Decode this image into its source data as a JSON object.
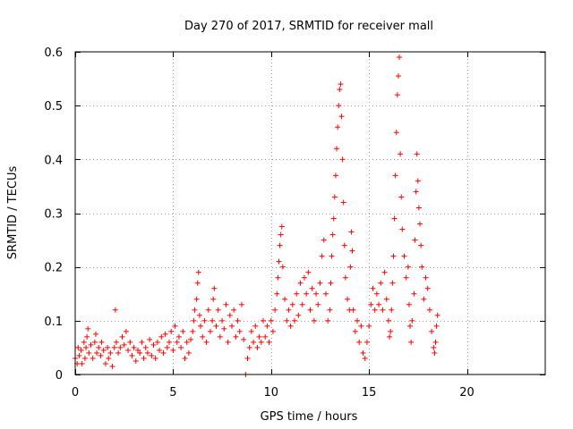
{
  "chart_data": {
    "type": "scatter",
    "title": "Day 270 of 2017, SRMTID for receiver mall",
    "xlabel": "GPS time / hours",
    "ylabel": "SRMTID / TECUs",
    "xlim": [
      0,
      24
    ],
    "ylim": [
      0,
      0.6
    ],
    "x_ticks": [
      0,
      5,
      10,
      15,
      20
    ],
    "x_tick_labels": [
      "0",
      "5",
      "10",
      "15",
      "20"
    ],
    "y_ticks": [
      0,
      0.1,
      0.2,
      0.3,
      0.4,
      0.5,
      0.6
    ],
    "y_tick_labels": [
      "0",
      "0.1",
      "0.2",
      "0.3",
      "0.4",
      "0.5",
      "0.6"
    ],
    "grid": true,
    "marker": "+",
    "marker_color": "#ff0000",
    "series": [
      {
        "name": "SRMTID",
        "points": [
          [
            0.0,
            0.03
          ],
          [
            0.1,
            0.02
          ],
          [
            0.15,
            0.05
          ],
          [
            0.2,
            0.035
          ],
          [
            0.3,
            0.045
          ],
          [
            0.35,
            0.02
          ],
          [
            0.45,
            0.06
          ],
          [
            0.5,
            0.03
          ],
          [
            0.55,
            0.05
          ],
          [
            0.6,
            0.07
          ],
          [
            0.65,
            0.085
          ],
          [
            0.7,
            0.04
          ],
          [
            0.8,
            0.055
          ],
          [
            0.9,
            0.03
          ],
          [
            1.0,
            0.06
          ],
          [
            1.05,
            0.075
          ],
          [
            1.1,
            0.04
          ],
          [
            1.2,
            0.05
          ],
          [
            1.3,
            0.035
          ],
          [
            1.35,
            0.06
          ],
          [
            1.45,
            0.045
          ],
          [
            1.55,
            0.02
          ],
          [
            1.65,
            0.05
          ],
          [
            1.7,
            0.03
          ],
          [
            1.8,
            0.04
          ],
          [
            1.9,
            0.015
          ],
          [
            2.0,
            0.05
          ],
          [
            2.05,
            0.12
          ],
          [
            2.1,
            0.06
          ],
          [
            2.2,
            0.04
          ],
          [
            2.3,
            0.05
          ],
          [
            2.4,
            0.07
          ],
          [
            2.5,
            0.055
          ],
          [
            2.6,
            0.08
          ],
          [
            2.7,
            0.045
          ],
          [
            2.8,
            0.06
          ],
          [
            2.9,
            0.035
          ],
          [
            3.0,
            0.05
          ],
          [
            3.1,
            0.025
          ],
          [
            3.2,
            0.045
          ],
          [
            3.3,
            0.04
          ],
          [
            3.4,
            0.06
          ],
          [
            3.5,
            0.03
          ],
          [
            3.6,
            0.05
          ],
          [
            3.7,
            0.04
          ],
          [
            3.8,
            0.065
          ],
          [
            3.9,
            0.035
          ],
          [
            4.0,
            0.055
          ],
          [
            4.1,
            0.03
          ],
          [
            4.2,
            0.06
          ],
          [
            4.3,
            0.045
          ],
          [
            4.4,
            0.07
          ],
          [
            4.5,
            0.04
          ],
          [
            4.6,
            0.075
          ],
          [
            4.7,
            0.05
          ],
          [
            4.8,
            0.06
          ],
          [
            4.9,
            0.08
          ],
          [
            5.0,
            0.045
          ],
          [
            5.1,
            0.09
          ],
          [
            5.2,
            0.06
          ],
          [
            5.3,
            0.07
          ],
          [
            5.4,
            0.05
          ],
          [
            5.5,
            0.08
          ],
          [
            5.6,
            0.03
          ],
          [
            5.7,
            0.06
          ],
          [
            5.8,
            0.04
          ],
          [
            5.9,
            0.065
          ],
          [
            6.0,
            0.08
          ],
          [
            6.05,
            0.1
          ],
          [
            6.1,
            0.12
          ],
          [
            6.2,
            0.14
          ],
          [
            6.25,
            0.17
          ],
          [
            6.3,
            0.19
          ],
          [
            6.35,
            0.11
          ],
          [
            6.4,
            0.09
          ],
          [
            6.5,
            0.07
          ],
          [
            6.6,
            0.1
          ],
          [
            6.7,
            0.06
          ],
          [
            6.8,
            0.12
          ],
          [
            6.9,
            0.08
          ],
          [
            7.0,
            0.1
          ],
          [
            7.05,
            0.14
          ],
          [
            7.1,
            0.16
          ],
          [
            7.2,
            0.09
          ],
          [
            7.3,
            0.12
          ],
          [
            7.4,
            0.07
          ],
          [
            7.5,
            0.1
          ],
          [
            7.6,
            0.085
          ],
          [
            7.7,
            0.13
          ],
          [
            7.8,
            0.06
          ],
          [
            7.9,
            0.11
          ],
          [
            8.0,
            0.09
          ],
          [
            8.1,
            0.12
          ],
          [
            8.2,
            0.07
          ],
          [
            8.3,
            0.1
          ],
          [
            8.4,
            0.08
          ],
          [
            8.5,
            0.13
          ],
          [
            8.6,
            0.065
          ],
          [
            8.7,
            0.0
          ],
          [
            8.8,
            0.03
          ],
          [
            8.9,
            0.05
          ],
          [
            9.0,
            0.08
          ],
          [
            9.1,
            0.06
          ],
          [
            9.2,
            0.09
          ],
          [
            9.3,
            0.05
          ],
          [
            9.4,
            0.07
          ],
          [
            9.5,
            0.06
          ],
          [
            9.6,
            0.1
          ],
          [
            9.7,
            0.07
          ],
          [
            9.8,
            0.09
          ],
          [
            9.9,
            0.06
          ],
          [
            10.0,
            0.1
          ],
          [
            10.1,
            0.08
          ],
          [
            10.2,
            0.12
          ],
          [
            10.3,
            0.15
          ],
          [
            10.35,
            0.18
          ],
          [
            10.4,
            0.21
          ],
          [
            10.45,
            0.24
          ],
          [
            10.5,
            0.26
          ],
          [
            10.55,
            0.275
          ],
          [
            10.6,
            0.2
          ],
          [
            10.7,
            0.14
          ],
          [
            10.8,
            0.1
          ],
          [
            10.9,
            0.12
          ],
          [
            11.0,
            0.09
          ],
          [
            11.1,
            0.13
          ],
          [
            11.2,
            0.1
          ],
          [
            11.3,
            0.15
          ],
          [
            11.4,
            0.11
          ],
          [
            11.5,
            0.17
          ],
          [
            11.6,
            0.13
          ],
          [
            11.7,
            0.18
          ],
          [
            11.8,
            0.15
          ],
          [
            11.9,
            0.19
          ],
          [
            12.0,
            0.12
          ],
          [
            12.1,
            0.16
          ],
          [
            12.2,
            0.1
          ],
          [
            12.3,
            0.15
          ],
          [
            12.4,
            0.13
          ],
          [
            12.5,
            0.17
          ],
          [
            12.6,
            0.22
          ],
          [
            12.7,
            0.25
          ],
          [
            12.8,
            0.15
          ],
          [
            12.9,
            0.1
          ],
          [
            13.0,
            0.12
          ],
          [
            13.05,
            0.17
          ],
          [
            13.1,
            0.22
          ],
          [
            13.15,
            0.26
          ],
          [
            13.2,
            0.29
          ],
          [
            13.25,
            0.33
          ],
          [
            13.3,
            0.37
          ],
          [
            13.35,
            0.42
          ],
          [
            13.4,
            0.46
          ],
          [
            13.45,
            0.5
          ],
          [
            13.5,
            0.53
          ],
          [
            13.55,
            0.54
          ],
          [
            13.6,
            0.48
          ],
          [
            13.65,
            0.4
          ],
          [
            13.7,
            0.32
          ],
          [
            13.75,
            0.24
          ],
          [
            13.8,
            0.18
          ],
          [
            13.9,
            0.14
          ],
          [
            14.0,
            0.12
          ],
          [
            14.05,
            0.2
          ],
          [
            14.1,
            0.265
          ],
          [
            14.15,
            0.23
          ],
          [
            14.2,
            0.12
          ],
          [
            14.3,
            0.08
          ],
          [
            14.4,
            0.1
          ],
          [
            14.5,
            0.06
          ],
          [
            14.6,
            0.09
          ],
          [
            14.7,
            0.04
          ],
          [
            14.8,
            0.03
          ],
          [
            14.9,
            0.06
          ],
          [
            15.0,
            0.09
          ],
          [
            15.1,
            0.13
          ],
          [
            15.2,
            0.16
          ],
          [
            15.3,
            0.12
          ],
          [
            15.4,
            0.15
          ],
          [
            15.5,
            0.13
          ],
          [
            15.6,
            0.17
          ],
          [
            15.7,
            0.12
          ],
          [
            15.8,
            0.19
          ],
          [
            15.9,
            0.14
          ],
          [
            16.0,
            0.1
          ],
          [
            16.05,
            0.07
          ],
          [
            16.1,
            0.08
          ],
          [
            16.15,
            0.12
          ],
          [
            16.2,
            0.17
          ],
          [
            16.25,
            0.22
          ],
          [
            16.3,
            0.29
          ],
          [
            16.35,
            0.37
          ],
          [
            16.4,
            0.45
          ],
          [
            16.45,
            0.52
          ],
          [
            16.5,
            0.555
          ],
          [
            16.55,
            0.59
          ],
          [
            16.6,
            0.41
          ],
          [
            16.65,
            0.33
          ],
          [
            16.7,
            0.27
          ],
          [
            16.8,
            0.22
          ],
          [
            16.9,
            0.18
          ],
          [
            17.0,
            0.2
          ],
          [
            17.05,
            0.13
          ],
          [
            17.1,
            0.09
          ],
          [
            17.15,
            0.06
          ],
          [
            17.2,
            0.1
          ],
          [
            17.3,
            0.15
          ],
          [
            17.35,
            0.25
          ],
          [
            17.4,
            0.34
          ],
          [
            17.45,
            0.41
          ],
          [
            17.5,
            0.36
          ],
          [
            17.55,
            0.31
          ],
          [
            17.6,
            0.28
          ],
          [
            17.65,
            0.24
          ],
          [
            17.7,
            0.2
          ],
          [
            17.8,
            0.14
          ],
          [
            17.9,
            0.18
          ],
          [
            18.0,
            0.16
          ],
          [
            18.1,
            0.12
          ],
          [
            18.2,
            0.08
          ],
          [
            18.3,
            0.05
          ],
          [
            18.35,
            0.04
          ],
          [
            18.4,
            0.06
          ],
          [
            18.45,
            0.09
          ],
          [
            18.5,
            0.11
          ]
        ]
      }
    ]
  }
}
